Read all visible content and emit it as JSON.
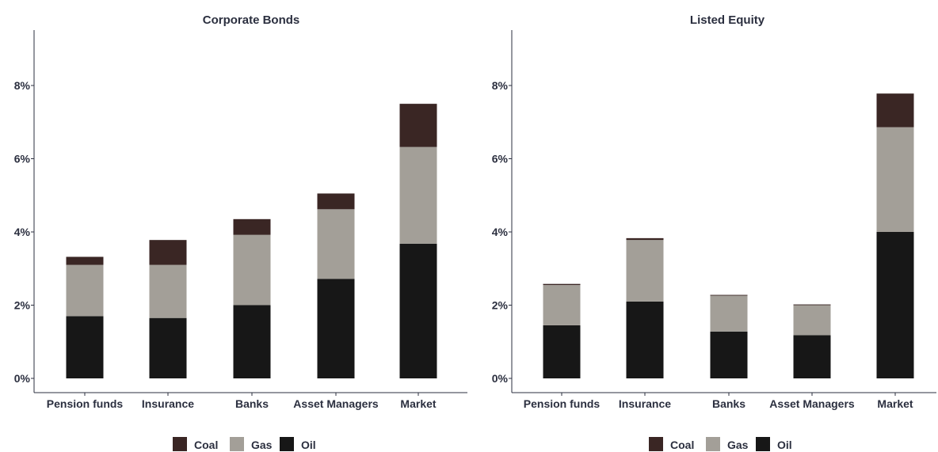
{
  "chart_data": [
    {
      "type": "bar",
      "stacked": true,
      "title": "Corporate Bonds",
      "categories": [
        "Pension funds",
        "Insurance",
        "Banks",
        "Asset Managers",
        "Market"
      ],
      "series": [
        {
          "name": "Oil",
          "color": "#171717",
          "values": [
            1.7,
            1.65,
            2.0,
            2.72,
            3.68
          ]
        },
        {
          "name": "Gas",
          "color": "#a39f98",
          "values": [
            1.4,
            1.45,
            1.92,
            1.9,
            2.64
          ]
        },
        {
          "name": "Coal",
          "color": "#3a2624",
          "values": [
            0.22,
            0.68,
            0.43,
            0.43,
            1.18
          ]
        }
      ],
      "yticks": [
        0,
        2,
        4,
        6,
        8
      ],
      "ytick_labels": [
        "0%",
        "2%",
        "4%",
        "6%",
        "8%"
      ],
      "ylim": [
        0,
        9.3
      ],
      "legend": {
        "position": "bottom",
        "items": [
          "Coal",
          "Gas",
          "Oil"
        ]
      }
    },
    {
      "type": "bar",
      "stacked": true,
      "title": "Listed Equity",
      "categories": [
        "Pension funds",
        "Insurance",
        "Banks",
        "Asset Managers",
        "Market"
      ],
      "series": [
        {
          "name": "Oil",
          "color": "#171717",
          "values": [
            1.45,
            2.1,
            1.28,
            1.18,
            4.0
          ]
        },
        {
          "name": "Gas",
          "color": "#a39f98",
          "values": [
            1.1,
            1.68,
            0.98,
            0.82,
            2.86
          ]
        },
        {
          "name": "Coal",
          "color": "#3a2624",
          "values": [
            0.03,
            0.05,
            0.02,
            0.02,
            0.92
          ]
        }
      ],
      "yticks": [
        0,
        2,
        4,
        6,
        8
      ],
      "ytick_labels": [
        "0%",
        "2%",
        "4%",
        "6%",
        "8%"
      ],
      "ylim": [
        0,
        9.3
      ],
      "legend": {
        "position": "bottom",
        "items": [
          "Coal",
          "Gas",
          "Oil"
        ]
      }
    }
  ]
}
